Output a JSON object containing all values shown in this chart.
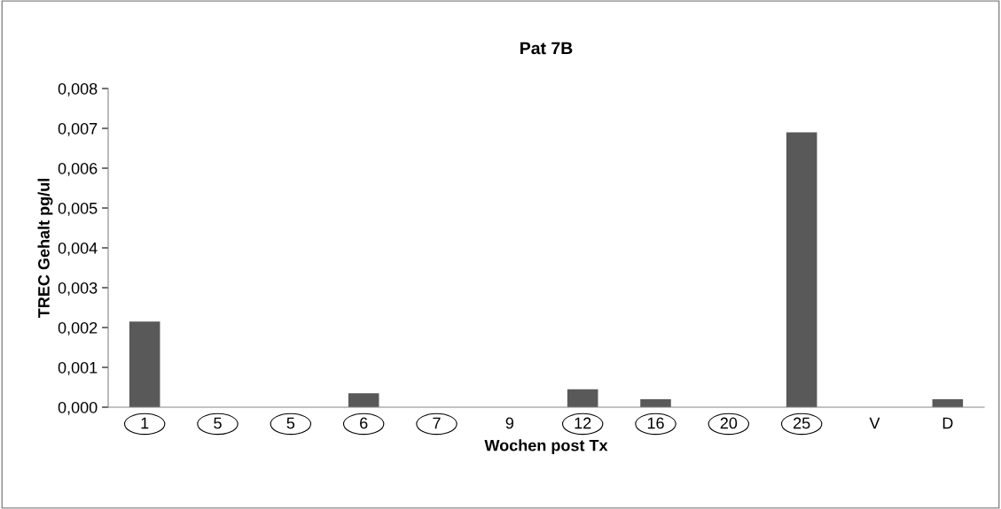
{
  "chart_data": {
    "type": "bar",
    "title": "Pat 7B",
    "xlabel": "Wochen post Tx",
    "ylabel": "TREC Gehalt pg/ul",
    "categories": [
      "1",
      "5",
      "5",
      "6",
      "7",
      "9",
      "12",
      "16",
      "20",
      "25",
      "V",
      "D"
    ],
    "values": [
      0.00215,
      0,
      0,
      0.00035,
      0,
      0,
      0.00045,
      0.0002,
      0,
      0.0069,
      0,
      0.0002
    ],
    "color": "#595959",
    "ylim": [
      0,
      0.008
    ],
    "yticks": [
      {
        "value": 0,
        "label": "0,000"
      },
      {
        "value": 0.001,
        "label": "0,001"
      },
      {
        "value": 0.002,
        "label": "0,002"
      },
      {
        "value": 0.003,
        "label": "0,003"
      },
      {
        "value": 0.004,
        "label": "0,004"
      },
      {
        "value": 0.005,
        "label": "0,005"
      },
      {
        "value": 0.006,
        "label": "0,006"
      },
      {
        "value": 0.007,
        "label": "0,007"
      },
      {
        "value": 0.008,
        "label": "0,008"
      }
    ],
    "grid": false,
    "legend": false
  }
}
